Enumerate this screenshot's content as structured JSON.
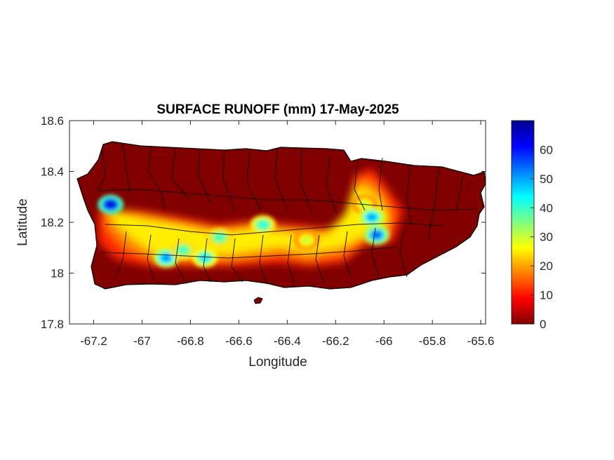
{
  "chart_data": {
    "type": "heatmap",
    "title": "SURFACE RUNOFF (mm) 17-May-2025",
    "xlabel": "Longitude",
    "ylabel": "Latitude",
    "xlim": [
      -67.3,
      -65.58
    ],
    "ylim": [
      17.8,
      18.6
    ],
    "xticks": [
      -67.2,
      -67,
      -66.8,
      -66.6,
      -66.4,
      -66.2,
      -66,
      -65.8,
      -65.6
    ],
    "xtick_labels": [
      "-67.2",
      "-67",
      "-66.8",
      "-66.6",
      "-66.4",
      "-66.2",
      "-66",
      "-65.8",
      "-65.6"
    ],
    "yticks": [
      17.8,
      18,
      18.2,
      18.4,
      18.6
    ],
    "ytick_labels": [
      "17.8",
      "18",
      "18.2",
      "18.4",
      "18.6"
    ],
    "colorbar": {
      "colormap": "jet",
      "range": [
        0,
        70
      ],
      "ticks": [
        0,
        10,
        20,
        30,
        40,
        50,
        60
      ],
      "tick_labels": [
        "0",
        "10",
        "20",
        "30",
        "40",
        "50",
        "60"
      ]
    },
    "background_value_color": "#800000",
    "grid": false,
    "hotspots": [
      {
        "lon": -67.13,
        "lat": 18.27,
        "runoff_mm": 65
      },
      {
        "lon": -66.9,
        "lat": 18.06,
        "runoff_mm": 52
      },
      {
        "lon": -66.83,
        "lat": 18.09,
        "runoff_mm": 40
      },
      {
        "lon": -66.74,
        "lat": 18.06,
        "runoff_mm": 45
      },
      {
        "lon": -66.68,
        "lat": 18.14,
        "runoff_mm": 40
      },
      {
        "lon": -66.5,
        "lat": 18.19,
        "runoff_mm": 42
      },
      {
        "lon": -66.32,
        "lat": 18.13,
        "runoff_mm": 30
      },
      {
        "lon": -66.08,
        "lat": 18.27,
        "runoff_mm": 30
      },
      {
        "lon": -66.05,
        "lat": 18.22,
        "runoff_mm": 50
      },
      {
        "lon": -66.03,
        "lat": 18.15,
        "runoff_mm": 55
      }
    ]
  }
}
